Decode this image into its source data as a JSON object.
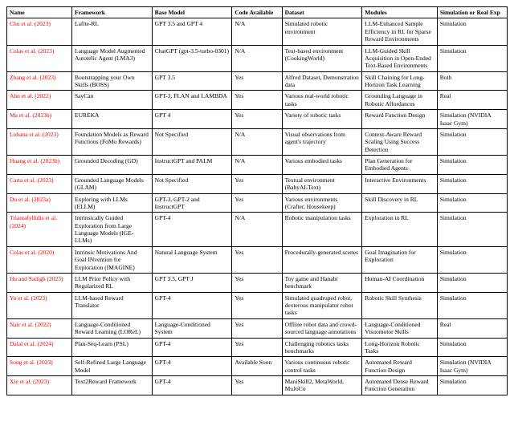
{
  "columns": [
    "Name",
    "Framework",
    "Base Model",
    "Code Available",
    "Dataset",
    "Modules",
    "Simulation or Real Exp"
  ],
  "rows": [
    {
      "name": "Chu et al. (2023)",
      "framework": "Lafite-RL",
      "base": "GPT 3.5 and GPT 4",
      "code": "N/A",
      "dataset": "Simulated robotic environment",
      "modules": "LLM-Enhanced Sample Efficiency in RL for Sparse Reward Environments",
      "sim": "Simulation"
    },
    {
      "name": "Colas et al. (2023)",
      "framework": "Language Model Augmented Autotelic Agent (LMA3)",
      "base": "ChatGPT (gpt-3.5-turbo-0301)",
      "code": "N/A",
      "dataset": "Text-based environment (CookingWorld)",
      "modules": "LLM-Guided Skill Acquisition in Open-Ended Text-Based Environments",
      "sim": "Simulation"
    },
    {
      "name": "Zhang et al. (2023)",
      "framework": "Bootstrapping your Own Skills (BOSS)",
      "base": "GPT 3.5",
      "code": "Yes",
      "dataset": "Alfred Dataset, Demonstration data",
      "modules": "Skill Chaining for Long-Horizon Task Learning",
      "sim": "Both"
    },
    {
      "name": "Ahn et al. (2022)",
      "framework": "SayCan",
      "base": "GPT-3, FLAN and LAMBDA",
      "code": "Yes",
      "dataset": "Various real-world robotic tasks",
      "modules": "Grounding Language in Robotic Affordances",
      "sim": "Real"
    },
    {
      "name": "Ma et al. (2023b)",
      "framework": "EUREKA",
      "base": "GPT 4",
      "code": "Yes",
      "dataset": "Variety of robotic tasks",
      "modules": "Reward Function Design",
      "sim": "Simulation (NVIDIA Isaac Gym)"
    },
    {
      "name": "Lubana et al. (2023)",
      "framework": "Foundation Models as Reward Functions (FoMo Rewards)",
      "base": "Not Specified",
      "code": "N/A",
      "dataset": "Visual observations from agent's trajectory",
      "modules": "Context-Aware Reward Scaling Using Success Detection",
      "sim": "Simulation"
    },
    {
      "name": "Huang et al. (2023b)",
      "framework": "Grounded Decoding (GD)",
      "base": "InstructGPT and PALM",
      "code": "N/A",
      "dataset": "Various embodied tasks",
      "modules": "Plan Generation for Embodied Agents",
      "sim": "Simulation"
    },
    {
      "name": "Carta et al. (2023)",
      "framework": "Grounded Language Models (GLAM)",
      "base": "Not Specified",
      "code": "Yes",
      "dataset": "Textual environment (BabyAI-Text)",
      "modules": "Interactive Environments",
      "sim": "Simulation"
    },
    {
      "name": "Du et al. (2023a)",
      "framework": "Exploring with LLMs (ELLM)",
      "base": "GPT-3, GPT-2 and InstructGPT",
      "code": "Yes",
      "dataset": "Various environments (Crafter, Housekeep)",
      "modules": "Skill Discovery in RL",
      "sim": "Simulation"
    },
    {
      "name": "Triantafyllidis et al. (2024)",
      "framework": "Intrinsically Guided Exploration from Large Language Models (IGE-LLMs)",
      "base": "GPT-4",
      "code": "N/A",
      "dataset": "Robotic manipulation tasks",
      "modules": "Exploration in RL",
      "sim": "Simulation"
    },
    {
      "name": "Colas et al. (2020)",
      "framework": "Intrinsic Motivations And Goal INvention for Exploration (IMAGINE)",
      "base": "Natural Language System",
      "code": "Yes",
      "dataset": "Procedurally-generated scenes",
      "modules": "Goal Imagination for Exploration",
      "sim": "Simulation"
    },
    {
      "name": "Hu and Sadigh (2023)",
      "framework": "LLM Prior Policy with Regularized RL",
      "base": "GPT 3.5, GPT J",
      "code": "Yes",
      "dataset": "Toy game and Hanabi benchmark",
      "modules": "Human-AI Coordination",
      "sim": "Simulation"
    },
    {
      "name": "Yu et al. (2023)",
      "framework": "LLM-based Reward Translator",
      "base": "GPT-4",
      "code": "Yes",
      "dataset": "Simulated quadruped robot, dexterous manipulator robot tasks",
      "modules": "Robotic Skill Synthesis",
      "sim": "Simulation"
    },
    {
      "name": "Nair et al. (2022)",
      "framework": "Language-Conditioned Reward Learning (LOReL)",
      "base": "Language-Conditioned System",
      "code": "Yes",
      "dataset": "Offline robot data and crowd-sourced language annotations",
      "modules": "Language-Conditioned Visuomotor Skills",
      "sim": "Real"
    },
    {
      "name": "Dalal et al. (2024)",
      "framework": "Plan-Seq-Learn (PSL)",
      "base": "GPT-4",
      "code": "Yes",
      "dataset": "Challenging robotics tasks benchmarks",
      "modules": "Long-Horizon Robotic Tasks",
      "sim": "Simulation"
    },
    {
      "name": "Song et al. (2023)",
      "framework": "Self-Refined Large Language Model",
      "base": "GPT-4",
      "code": "Available Soon",
      "dataset": "Various continuous robotic control tasks",
      "modules": "Automated Reward Function Design",
      "sim": "Simulation (NVIDIA Isaac Gym)"
    },
    {
      "name": "Xie et al. (2023)",
      "framework": "Text2Reward Framework",
      "base": "GPT-4",
      "code": "Yes",
      "dataset": "ManiSkill2, MetaWorld, MuJoCo",
      "modules": "Automated Dense Reward Function Generation",
      "sim": "Simulation"
    }
  ]
}
